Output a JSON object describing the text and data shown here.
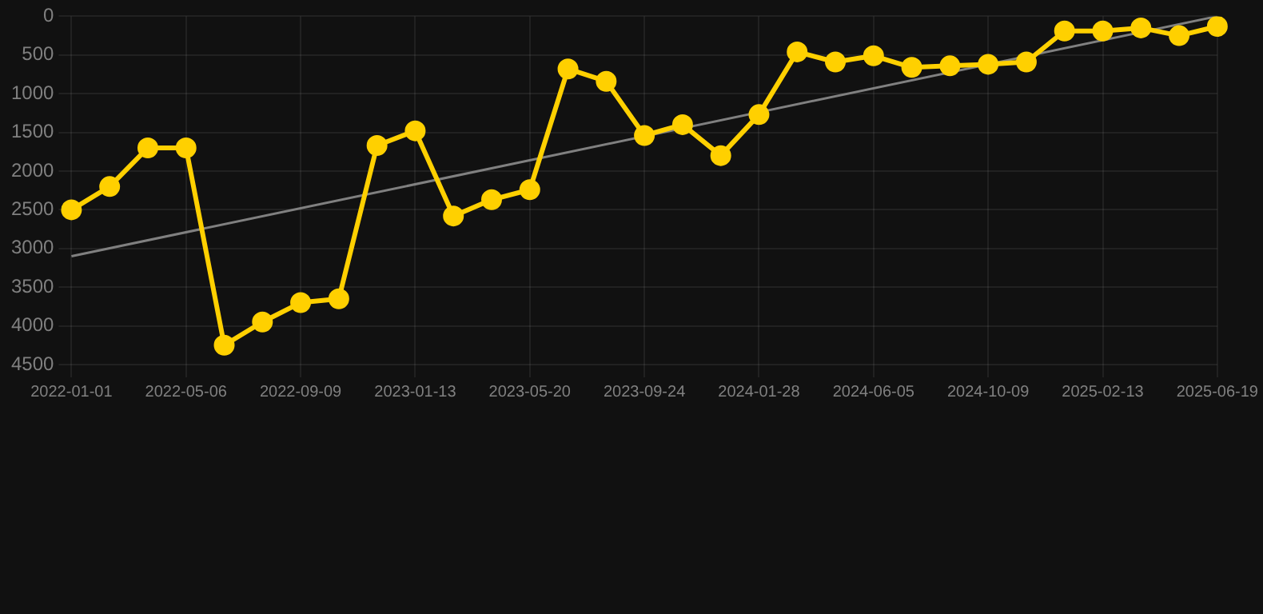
{
  "chart_data": {
    "type": "line",
    "categories": [
      "2022-01-01",
      null,
      null,
      "2022-05-06",
      null,
      null,
      "2022-09-09",
      null,
      null,
      "2023-01-13",
      null,
      null,
      "2023-05-20",
      null,
      null,
      "2023-09-24",
      null,
      null,
      "2024-01-28",
      null,
      null,
      "2024-06-05",
      null,
      null,
      "2024-10-09",
      null,
      null,
      "2025-02-13",
      null,
      null,
      "2025-06-19"
    ],
    "series": [
      {
        "color": "#ffd000",
        "marker": "circle",
        "values": [
          2500,
          2200,
          1700,
          1700,
          4250,
          3950,
          3700,
          3650,
          1670,
          1480,
          2580,
          2370,
          2240,
          680,
          840,
          1540,
          1400,
          1800,
          1270,
          460,
          590,
          510,
          660,
          640,
          620,
          590,
          190,
          190,
          150,
          250,
          130
        ]
      },
      {
        "type": "line",
        "color": "#808080",
        "marker": "none",
        "values": [
          3100,
          null,
          null,
          null,
          null,
          null,
          null,
          null,
          null,
          null,
          null,
          null,
          null,
          null,
          null,
          null,
          null,
          null,
          null,
          null,
          null,
          null,
          null,
          null,
          null,
          null,
          null,
          null,
          null,
          null,
          0
        ]
      }
    ],
    "ylim": [
      4500,
      0
    ],
    "yticks": [
      0,
      500,
      1000,
      1500,
      2000,
      2500,
      3000,
      3500,
      4000,
      4500
    ],
    "grid": true,
    "legend": false
  }
}
